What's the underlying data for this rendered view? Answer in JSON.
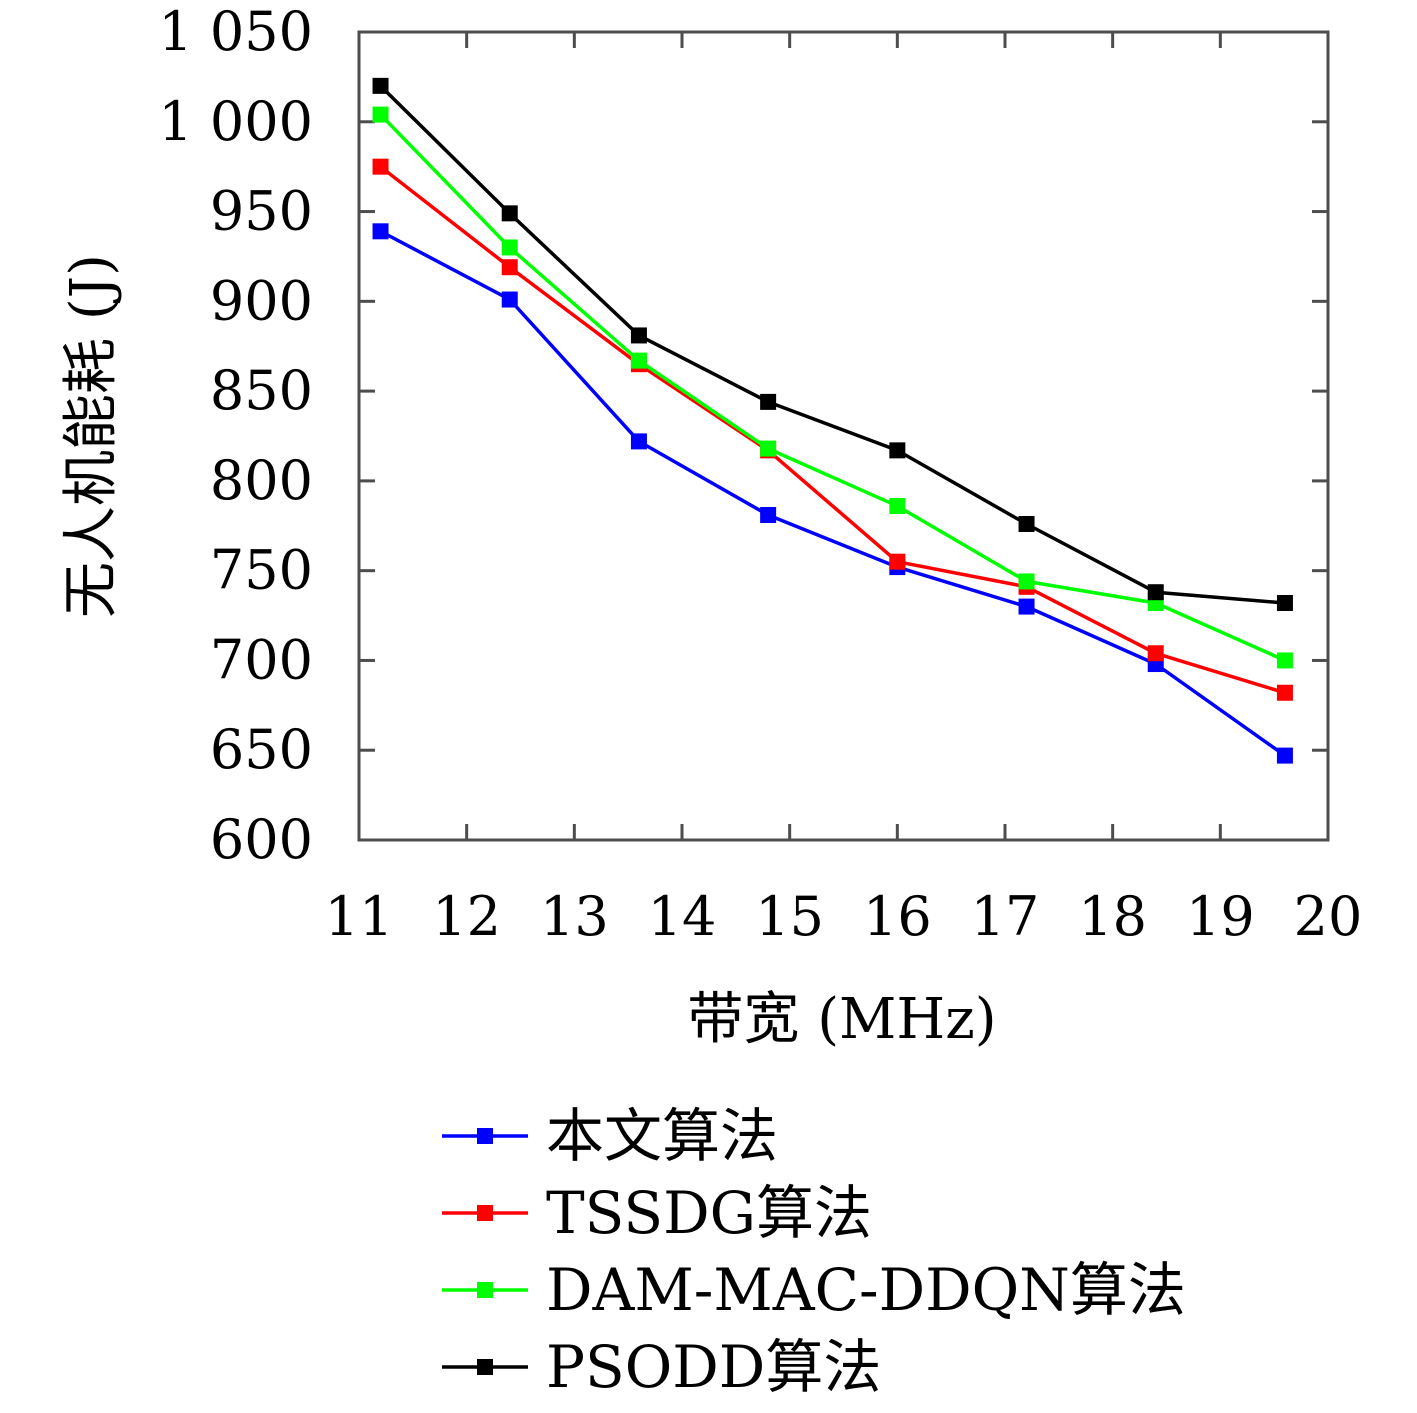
{
  "chart_data": {
    "type": "line",
    "title": "",
    "xlabel": "带宽 (MHz)",
    "ylabel": "无人机能耗 (J)",
    "xlim": [
      11,
      20
    ],
    "ylim": [
      600,
      1050
    ],
    "xticks": [
      11,
      12,
      13,
      14,
      15,
      16,
      17,
      18,
      19,
      20
    ],
    "xtick_labels": [
      "11",
      "12",
      "13",
      "14",
      "15",
      "16",
      "17",
      "18",
      "19",
      "20"
    ],
    "yticks": [
      600,
      650,
      700,
      750,
      800,
      850,
      900,
      950,
      1000,
      1050
    ],
    "ytick_labels": [
      "600",
      "650",
      "700",
      "750",
      "800",
      "850",
      "900",
      "950",
      "1 000",
      "1 050"
    ],
    "grid": false,
    "legend_position": "bottom",
    "x": [
      11.2,
      12.4,
      13.6,
      14.8,
      16.0,
      17.2,
      18.4,
      19.6
    ],
    "series": [
      {
        "name": "本文算法",
        "color": "#0000ff",
        "values": [
          939,
          901,
          822,
          781,
          752,
          730,
          698,
          647
        ]
      },
      {
        "name": "TSSDG算法",
        "color": "#ff0000",
        "values": [
          975,
          919,
          865,
          817,
          755,
          741,
          704,
          682
        ]
      },
      {
        "name": "DAM-MAC-DDQN算法",
        "color": "#00ff00",
        "values": [
          1004,
          930,
          867,
          818,
          786,
          744,
          732,
          700
        ]
      },
      {
        "name": "PSODD算法",
        "color": "#000000",
        "values": [
          1020,
          949,
          881,
          844,
          817,
          776,
          738,
          732
        ]
      }
    ]
  }
}
